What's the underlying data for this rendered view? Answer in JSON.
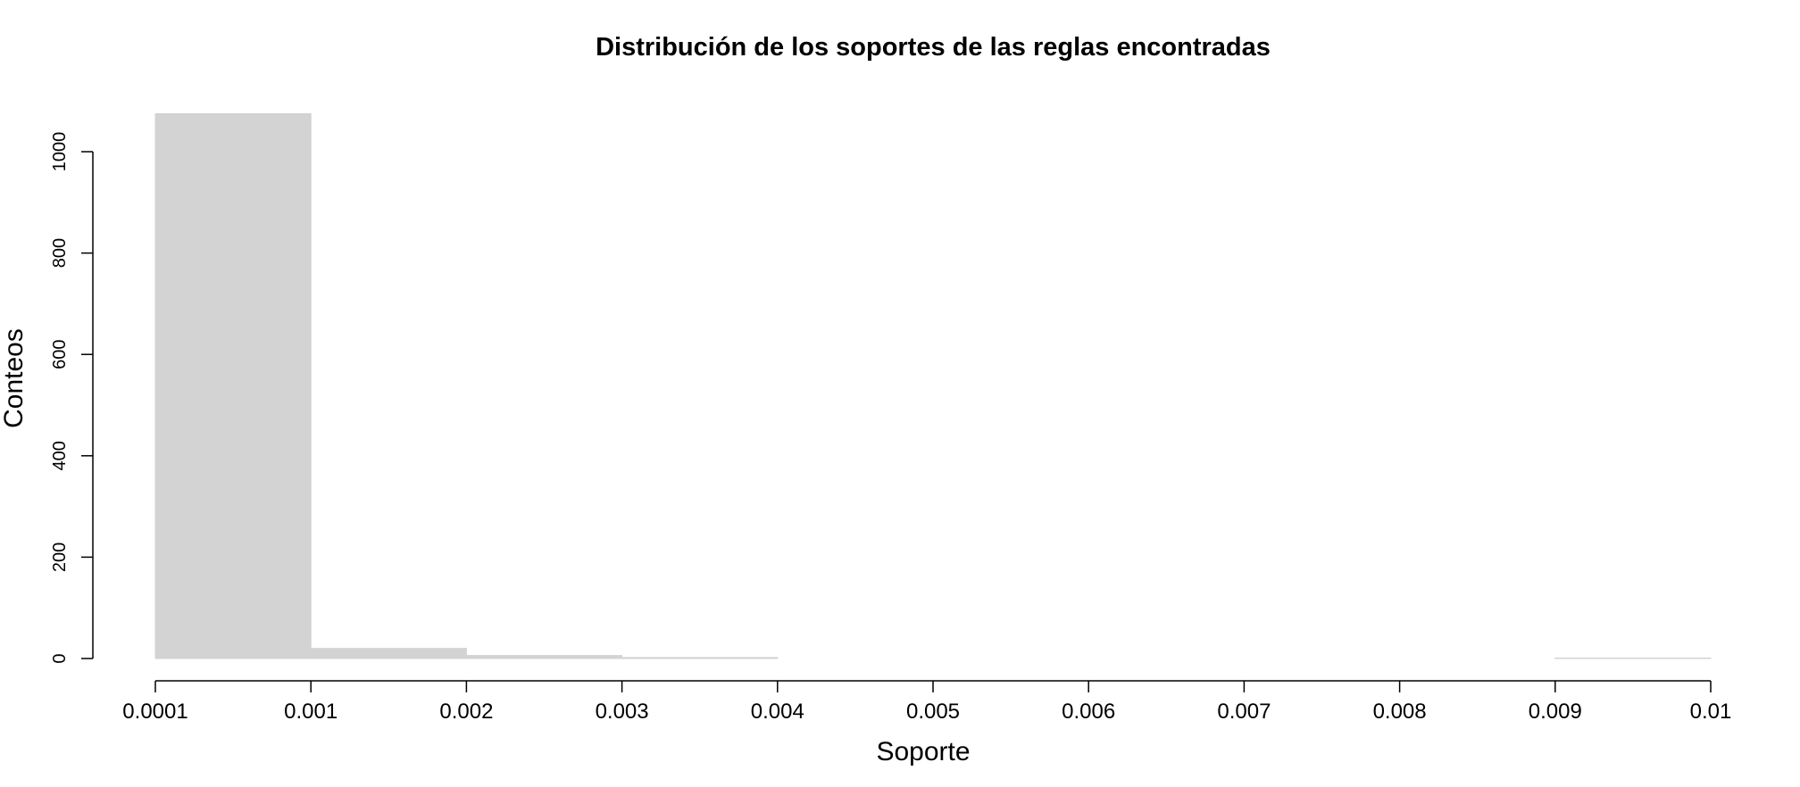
{
  "chart_data": {
    "type": "bar",
    "title": "Distribución de los soportes de las reglas encontradas",
    "xlabel": "Soporte",
    "ylabel": "Conteos",
    "x_ticks": [
      "0.0001",
      "0.001",
      "0.002",
      "0.003",
      "0.004",
      "0.005",
      "0.006",
      "0.007",
      "0.008",
      "0.009",
      "0.01"
    ],
    "y_ticks": [
      "0",
      "200",
      "400",
      "600",
      "800",
      "1000"
    ],
    "ylim": [
      0,
      1000
    ],
    "bins": [
      {
        "bin": "0.0001-0.001",
        "count": 1075
      },
      {
        "bin": "0.001-0.002",
        "count": 20
      },
      {
        "bin": "0.002-0.003",
        "count": 6
      },
      {
        "bin": "0.003-0.004",
        "count": 2
      },
      {
        "bin": "0.004-0.005",
        "count": 0
      },
      {
        "bin": "0.005-0.006",
        "count": 0
      },
      {
        "bin": "0.006-0.007",
        "count": 0
      },
      {
        "bin": "0.007-0.008",
        "count": 0
      },
      {
        "bin": "0.008-0.009",
        "count": 0
      },
      {
        "bin": "0.009-0.01",
        "count": 1
      }
    ],
    "bar_color": "#d3d3d3",
    "grid": false,
    "legend": "none"
  }
}
